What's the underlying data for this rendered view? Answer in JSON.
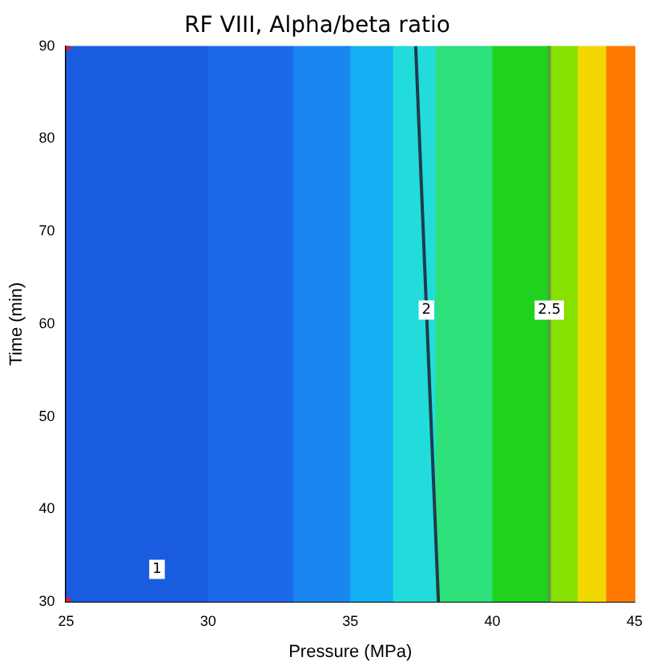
{
  "chart_data": {
    "type": "line",
    "title": "RF VIII, Alpha/beta ratio",
    "xlabel": "Pressure (MPa)",
    "ylabel": "Time (min)",
    "xlim": [
      25,
      45
    ],
    "xticks": [
      25,
      30,
      35,
      40,
      45
    ],
    "ylim": [
      30,
      90
    ],
    "yticks": [
      30,
      40,
      50,
      60,
      70,
      80,
      90
    ],
    "grid": false,
    "legend": false,
    "marker": "none",
    "line_style": "solid",
    "bands": [
      {
        "axis": "x",
        "from": 25,
        "to": 30,
        "color": "#1a5ce0"
      },
      {
        "axis": "x",
        "from": 30,
        "to": 33,
        "color": "#1c6aea"
      },
      {
        "axis": "x",
        "from": 33,
        "to": 35,
        "color": "#1a86f0"
      },
      {
        "axis": "x",
        "from": 35,
        "to": 36.5,
        "color": "#14aef2"
      },
      {
        "axis": "x",
        "from": 36.5,
        "to": 38,
        "color": "#22dcdc"
      },
      {
        "axis": "x",
        "from": 38,
        "to": 40,
        "color": "#2ee07a"
      },
      {
        "axis": "x",
        "from": 40,
        "to": 42,
        "color": "#1ed21e"
      },
      {
        "axis": "x",
        "from": 42,
        "to": 43,
        "color": "#86e000"
      },
      {
        "axis": "x",
        "from": 43,
        "to": 44,
        "color": "#f0d800"
      },
      {
        "axis": "x",
        "from": 44,
        "to": 45,
        "color": "#ff7a00"
      }
    ],
    "series": [
      {
        "name": "2",
        "color": "#1f3b4d",
        "x": [
          37.3,
          38.1
        ],
        "values": [
          90,
          30
        ]
      },
      {
        "name": "2.5",
        "color": "#5e9a48",
        "x": [
          42,
          42
        ],
        "values": [
          90,
          30
        ]
      },
      {
        "type": "scatter",
        "marker": "square",
        "color": "#e02020",
        "x": [
          25,
          25
        ],
        "values": [
          30,
          90
        ]
      }
    ],
    "annotations": [
      {
        "text": "1",
        "x": 28.2,
        "y": 33.5
      }
    ]
  }
}
